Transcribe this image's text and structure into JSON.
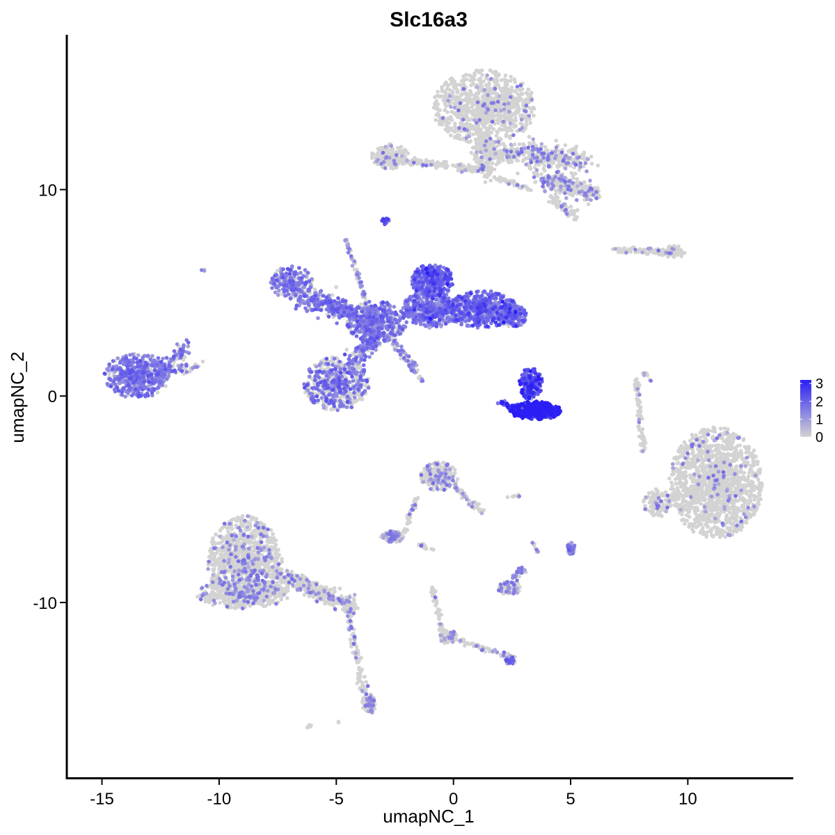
{
  "chart_data": {
    "type": "scatter",
    "title": "Slc16a3",
    "xlabel": "umapNC_1",
    "ylabel": "umapNC_2",
    "xlim": [
      -16.5,
      14.5
    ],
    "ylim": [
      -18.5,
      17.5
    ],
    "x_ticks": [
      -15,
      -10,
      -5,
      0,
      5,
      10
    ],
    "x_tick_labels": [
      "-15",
      "-10",
      "-5",
      "0",
      "5",
      "10"
    ],
    "y_ticks": [
      -10,
      0,
      10
    ],
    "y_tick_labels": [
      "-10",
      "0",
      "10"
    ],
    "grid": false,
    "legend": {
      "placement": "right",
      "min": 0,
      "max": 3.2,
      "ticks": [
        0,
        1,
        2,
        3
      ],
      "tick_labels": [
        "0",
        "1",
        "2",
        "3"
      ]
    },
    "colors": {
      "low": "#d3d3d3",
      "high": "#2b1ef5"
    },
    "clusters": [
      {
        "id": "top-large",
        "type": "blob",
        "cx": 1.3,
        "cy": 14.0,
        "rx": 2.2,
        "ry": 1.8,
        "n": 900,
        "expr": 0.04
      },
      {
        "id": "top-stem",
        "type": "segment",
        "x1": 1.2,
        "y1": 12.4,
        "x2": 1.4,
        "y2": 10.8,
        "spread": 0.45,
        "n": 160,
        "expr": 0.06
      },
      {
        "id": "top-right-arm",
        "type": "segment",
        "x1": 1.8,
        "y1": 11.8,
        "x2": 5.5,
        "y2": 11.4,
        "spread": 0.55,
        "n": 400,
        "expr": 0.22
      },
      {
        "id": "top-right-lower",
        "type": "segment",
        "x1": 3.8,
        "y1": 10.6,
        "x2": 6.0,
        "y2": 9.8,
        "spread": 0.45,
        "n": 260,
        "expr": 0.2
      },
      {
        "id": "top-right-tail",
        "type": "segment",
        "x1": 4.2,
        "y1": 9.6,
        "x2": 5.2,
        "y2": 8.7,
        "spread": 0.25,
        "n": 60,
        "expr": 0.15
      },
      {
        "id": "top-left-blob",
        "type": "blob",
        "cx": -2.7,
        "cy": 11.6,
        "rx": 0.8,
        "ry": 0.6,
        "n": 170,
        "expr": 0.08
      },
      {
        "id": "top-bridge",
        "type": "segment",
        "x1": -3.2,
        "y1": 11.5,
        "x2": 1.3,
        "y2": 11.0,
        "spread": 0.2,
        "n": 170,
        "expr": 0.08
      },
      {
        "id": "top-mid-tail",
        "type": "segment",
        "x1": 1.8,
        "y1": 10.6,
        "x2": 3.3,
        "y2": 10.0,
        "spread": 0.12,
        "n": 50,
        "expr": 0.05
      },
      {
        "id": "small-purple",
        "type": "blob",
        "cx": -2.9,
        "cy": 8.5,
        "rx": 0.15,
        "ry": 0.2,
        "n": 18,
        "expr": 2.2
      },
      {
        "id": "right-line",
        "type": "segment",
        "x1": 6.8,
        "y1": 7.1,
        "x2": 9.7,
        "y2": 6.9,
        "spread": 0.15,
        "n": 90,
        "expr": 0.06
      },
      {
        "id": "right-line-blob",
        "type": "blob",
        "cx": 9.4,
        "cy": 7.0,
        "rx": 0.5,
        "ry": 0.3,
        "n": 60,
        "expr": 0.03
      },
      {
        "id": "left-small",
        "type": "blob",
        "cx": -10.7,
        "cy": 6.1,
        "rx": 0.08,
        "ry": 0.08,
        "n": 3,
        "expr": 0.2
      },
      {
        "id": "mid-upper-left",
        "type": "blob",
        "cx": -6.9,
        "cy": 5.5,
        "rx": 0.9,
        "ry": 0.8,
        "n": 220,
        "expr": 0.75
      },
      {
        "id": "mid-arm-left",
        "type": "segment",
        "x1": -6.5,
        "y1": 4.8,
        "x2": -3.5,
        "y2": 3.7,
        "spread": 0.55,
        "n": 320,
        "expr": 0.8
      },
      {
        "id": "mid-hub",
        "type": "blob",
        "cx": -3.3,
        "cy": 3.6,
        "rx": 1.3,
        "ry": 1.0,
        "n": 420,
        "expr": 0.85
      },
      {
        "id": "mid-upper-right",
        "type": "blob",
        "cx": -0.9,
        "cy": 5.6,
        "rx": 0.9,
        "ry": 0.8,
        "n": 330,
        "expr": 1.8
      },
      {
        "id": "mid-right",
        "type": "blob",
        "cx": 1.2,
        "cy": 4.2,
        "rx": 1.6,
        "ry": 0.9,
        "n": 520,
        "expr": 1.7
      },
      {
        "id": "mid-center",
        "type": "blob",
        "cx": -1.0,
        "cy": 4.2,
        "rx": 1.2,
        "ry": 0.9,
        "n": 380,
        "expr": 1.5
      },
      {
        "id": "mid-right-end",
        "type": "blob",
        "cx": 2.6,
        "cy": 3.9,
        "rx": 0.5,
        "ry": 0.6,
        "n": 120,
        "expr": 1.6
      },
      {
        "id": "mid-lower",
        "type": "blob",
        "cx": -5.0,
        "cy": 0.6,
        "rx": 1.4,
        "ry": 1.3,
        "n": 550,
        "expr": 0.55
      },
      {
        "id": "mid-lower-stem",
        "type": "segment",
        "x1": -4.2,
        "y1": 1.8,
        "x2": -3.0,
        "y2": 3.2,
        "spread": 0.4,
        "n": 150,
        "expr": 0.7
      },
      {
        "id": "mid-spike-up",
        "type": "segment",
        "x1": -3.5,
        "y1": 3.7,
        "x2": -4.6,
        "y2": 7.6,
        "spread": 0.1,
        "n": 80,
        "expr": 0.5
      },
      {
        "id": "mid-spike-down",
        "type": "segment",
        "x1": -3.0,
        "y1": 3.0,
        "x2": -1.3,
        "y2": 0.7,
        "spread": 0.1,
        "n": 60,
        "expr": 0.5
      },
      {
        "id": "mid-spike-down2",
        "type": "segment",
        "x1": -2.5,
        "y1": 2.7,
        "x2": -1.6,
        "y2": 1.4,
        "spread": 0.1,
        "n": 30,
        "expr": 0.4
      },
      {
        "id": "left-cluster",
        "type": "blob",
        "cx": -13.5,
        "cy": 1.0,
        "rx": 1.4,
        "ry": 1.1,
        "n": 480,
        "expr": 0.85
      },
      {
        "id": "left-cluster-arm",
        "type": "segment",
        "x1": -12.5,
        "y1": 1.0,
        "x2": -11.4,
        "y2": 2.5,
        "spread": 0.35,
        "n": 80,
        "expr": 0.6
      },
      {
        "id": "left-cluster-arm2",
        "type": "segment",
        "x1": -12.5,
        "y1": 1.2,
        "x2": -10.9,
        "y2": 1.4,
        "spread": 0.25,
        "n": 50,
        "expr": 0.6
      },
      {
        "id": "hot-cluster",
        "type": "blob",
        "cx": 3.5,
        "cy": -0.7,
        "rx": 1.1,
        "ry": 0.45,
        "n": 360,
        "expr": 3.0
      },
      {
        "id": "hot-cluster-upper",
        "type": "blob",
        "cx": 3.3,
        "cy": 0.6,
        "rx": 0.5,
        "ry": 0.8,
        "n": 160,
        "expr": 2.3
      },
      {
        "id": "hot-cluster-left",
        "type": "segment",
        "x1": 2.0,
        "y1": -0.3,
        "x2": 2.8,
        "y2": -0.8,
        "spread": 0.15,
        "n": 40,
        "expr": 2.6
      },
      {
        "id": "right-thin-line",
        "type": "segment",
        "x1": 7.8,
        "y1": 0.8,
        "x2": 8.1,
        "y2": -2.8,
        "spread": 0.12,
        "n": 70,
        "expr": 0.05
      },
      {
        "id": "right-thin-top",
        "type": "segment",
        "x1": 8.1,
        "y1": 1.1,
        "x2": 8.5,
        "y2": 0.7,
        "spread": 0.08,
        "n": 10,
        "expr": 0.3
      },
      {
        "id": "right-large",
        "type": "blob",
        "cx": 11.2,
        "cy": -4.2,
        "rx": 2.0,
        "ry": 2.7,
        "n": 1400,
        "expr": 0.03
      },
      {
        "id": "right-large-left",
        "type": "blob",
        "cx": 8.7,
        "cy": -5.2,
        "rx": 0.6,
        "ry": 0.7,
        "n": 120,
        "expr": 0.06
      },
      {
        "id": "center-small",
        "type": "blob",
        "cx": -0.6,
        "cy": -3.9,
        "rx": 0.8,
        "ry": 0.7,
        "n": 260,
        "expr": 0.18
      },
      {
        "id": "center-small-arm",
        "type": "segment",
        "x1": 0.0,
        "y1": -4.3,
        "x2": 1.2,
        "y2": -5.6,
        "spread": 0.18,
        "n": 50,
        "expr": 0.2
      },
      {
        "id": "center-line",
        "type": "segment",
        "x1": -1.5,
        "y1": -4.8,
        "x2": -2.2,
        "y2": -6.8,
        "spread": 0.12,
        "n": 40,
        "expr": 0.05
      },
      {
        "id": "center-lower-blob",
        "type": "blob",
        "cx": -2.6,
        "cy": -6.8,
        "rx": 0.5,
        "ry": 0.3,
        "n": 90,
        "expr": 0.3
      },
      {
        "id": "center-lower-dots",
        "type": "segment",
        "x1": -1.5,
        "y1": -7.2,
        "x2": -0.9,
        "y2": -7.4,
        "spread": 0.1,
        "n": 12,
        "expr": 0.05
      },
      {
        "id": "small-right",
        "type": "blob",
        "cx": 5.0,
        "cy": -7.4,
        "rx": 0.2,
        "ry": 0.3,
        "n": 40,
        "expr": 0.9
      },
      {
        "id": "small-center-right",
        "type": "blob",
        "cx": 2.4,
        "cy": -9.3,
        "rx": 0.5,
        "ry": 0.35,
        "n": 90,
        "expr": 0.35
      },
      {
        "id": "small-center-right-arm",
        "type": "segment",
        "x1": 2.5,
        "y1": -8.9,
        "x2": 3.0,
        "y2": -8.3,
        "spread": 0.15,
        "n": 25,
        "expr": 0.5
      },
      {
        "id": "dots-right",
        "type": "segment",
        "x1": 3.3,
        "y1": -7.0,
        "x2": 3.6,
        "y2": -7.6,
        "spread": 0.08,
        "n": 8,
        "expr": 0.05
      },
      {
        "id": "dots-mid",
        "type": "segment",
        "x1": 2.2,
        "y1": -4.9,
        "x2": 3.0,
        "y2": -4.8,
        "spread": 0.06,
        "n": 8,
        "expr": 0.05
      },
      {
        "id": "bottom-left",
        "type": "blob",
        "cx": -8.9,
        "cy": -8.0,
        "rx": 1.6,
        "ry": 2.2,
        "n": 1000,
        "expr": 0.15
      },
      {
        "id": "bottom-left-lower",
        "type": "blob",
        "cx": -9.0,
        "cy": -9.6,
        "rx": 2.0,
        "ry": 0.7,
        "n": 400,
        "expr": 0.15
      },
      {
        "id": "bottom-left-arm",
        "type": "segment",
        "x1": -7.5,
        "y1": -8.6,
        "x2": -4.2,
        "y2": -10.3,
        "spread": 0.4,
        "n": 300,
        "expr": 0.15
      },
      {
        "id": "bottom-left-tail",
        "type": "segment",
        "x1": -4.5,
        "y1": -10.4,
        "x2": -3.6,
        "y2": -15.3,
        "spread": 0.18,
        "n": 100,
        "expr": 0.15
      },
      {
        "id": "bottom-left-tail-blob",
        "type": "blob",
        "cx": -3.6,
        "cy": -14.9,
        "rx": 0.3,
        "ry": 0.5,
        "n": 60,
        "expr": 0.5
      },
      {
        "id": "bottom-dot",
        "type": "segment",
        "x1": -6.3,
        "y1": -16.1,
        "x2": -6.0,
        "y2": -15.9,
        "spread": 0.05,
        "n": 6,
        "expr": 0.05
      },
      {
        "id": "bottom-dot2",
        "type": "segment",
        "x1": -4.9,
        "y1": -15.8,
        "x2": -4.9,
        "y2": -15.8,
        "spread": 0.05,
        "n": 2,
        "expr": 0.05
      },
      {
        "id": "bottom-center-line",
        "type": "segment",
        "x1": -0.9,
        "y1": -9.3,
        "x2": -0.5,
        "y2": -11.5,
        "spread": 0.12,
        "n": 45,
        "expr": 0.05
      },
      {
        "id": "bottom-center-blob",
        "type": "blob",
        "cx": -0.2,
        "cy": -11.7,
        "rx": 0.4,
        "ry": 0.35,
        "n": 70,
        "expr": 0.2
      },
      {
        "id": "bottom-center-arm",
        "type": "segment",
        "x1": 0.2,
        "y1": -11.8,
        "x2": 2.6,
        "y2": -12.7,
        "spread": 0.12,
        "n": 60,
        "expr": 0.2
      },
      {
        "id": "bottom-center-end",
        "type": "blob",
        "cx": 2.4,
        "cy": -12.8,
        "rx": 0.25,
        "ry": 0.2,
        "n": 25,
        "expr": 0.8
      }
    ]
  }
}
